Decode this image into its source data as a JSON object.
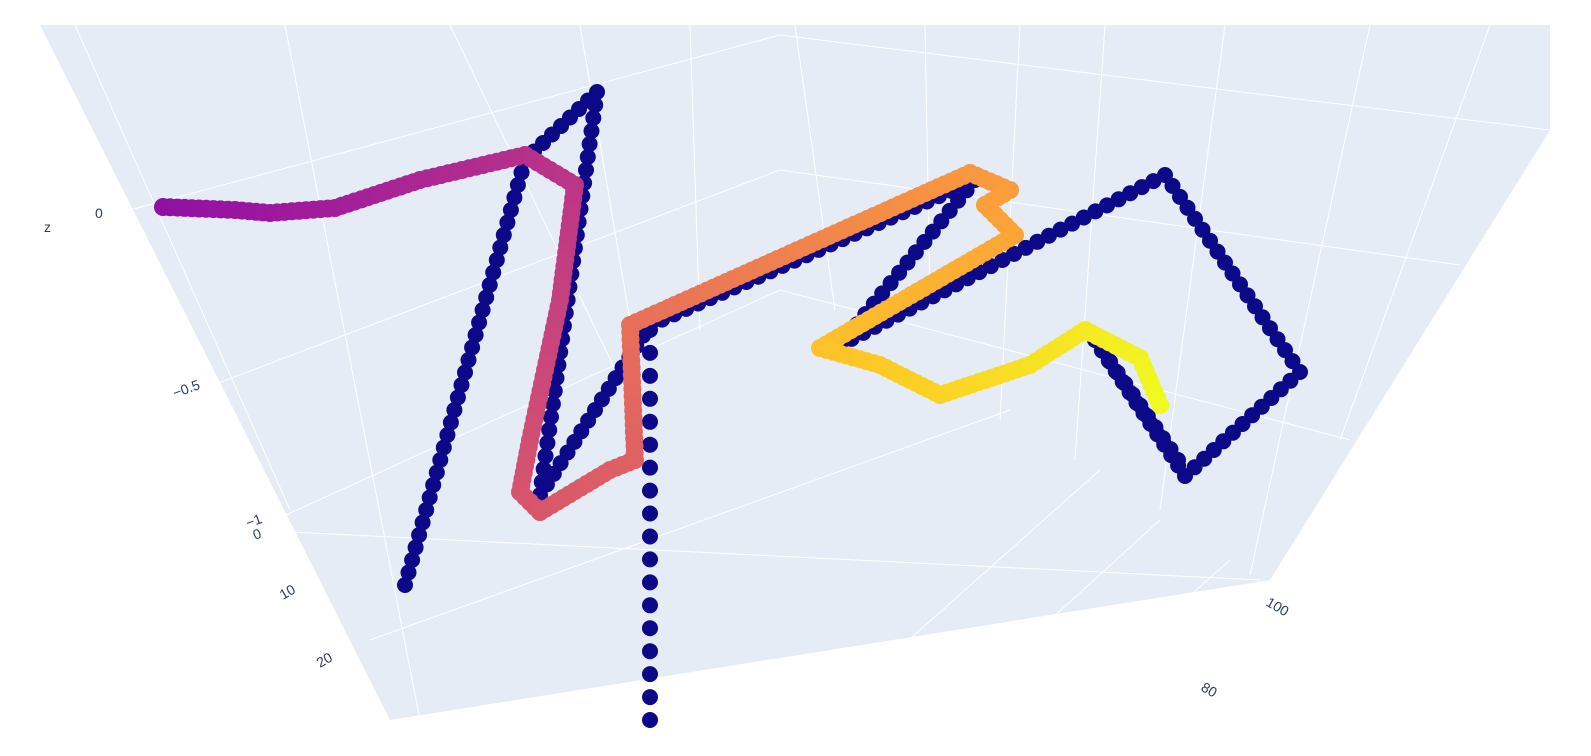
{
  "chart_data": {
    "type": "scatter3d",
    "title": "",
    "axes": {
      "z": {
        "label": "z",
        "range": [
          -1,
          0.2
        ],
        "ticks": [
          "0",
          "−0.5",
          "−1"
        ]
      },
      "x": {
        "label": "",
        "range": [
          -5,
          30
        ],
        "ticks": [
          "0",
          "10",
          "20"
        ]
      },
      "y": {
        "label": "",
        "range": [
          70,
          110
        ],
        "ticks": [
          "80",
          "100"
        ]
      }
    },
    "grid": true,
    "background": "#e5ecf6",
    "gridcolor": "#ffffff",
    "colorscale": "Plasma",
    "marker_size": 10,
    "series": [
      {
        "role": "color-gradient-path",
        "note": "walk colored by index from purple to yellow",
        "x": [
          0,
          1,
          2,
          3,
          4,
          5,
          6,
          7,
          8,
          9,
          10,
          11,
          12,
          13,
          14,
          15,
          16,
          17,
          18,
          19,
          20,
          21,
          22,
          23,
          24
        ],
        "y": [
          75,
          76,
          78,
          80,
          82,
          84,
          86,
          88,
          90,
          92,
          94,
          96,
          98,
          100,
          100,
          100,
          99,
          98,
          97,
          96,
          95,
          96,
          97,
          98,
          99
        ],
        "z": [
          0.0,
          0.0,
          -0.02,
          0.05,
          0.12,
          0.15,
          0.05,
          -0.2,
          -0.5,
          -0.7,
          -0.8,
          -0.75,
          -0.3,
          -0.1,
          0.1,
          0.05,
          -0.1,
          -0.3,
          -0.5,
          -0.55,
          -0.45,
          -0.4,
          -0.45,
          -0.5,
          -0.55
        ]
      },
      {
        "role": "navy-projection-path",
        "color": "#0d0887",
        "x": [
          10,
          12,
          14,
          16,
          18,
          20,
          22,
          24,
          26
        ],
        "y": [
          80,
          82,
          84,
          86,
          88,
          90,
          92,
          94,
          96
        ],
        "z": [
          -0.95,
          0.1,
          -0.8,
          0.05,
          -0.35,
          0.15,
          -0.4,
          -0.6,
          -0.75
        ]
      }
    ]
  }
}
